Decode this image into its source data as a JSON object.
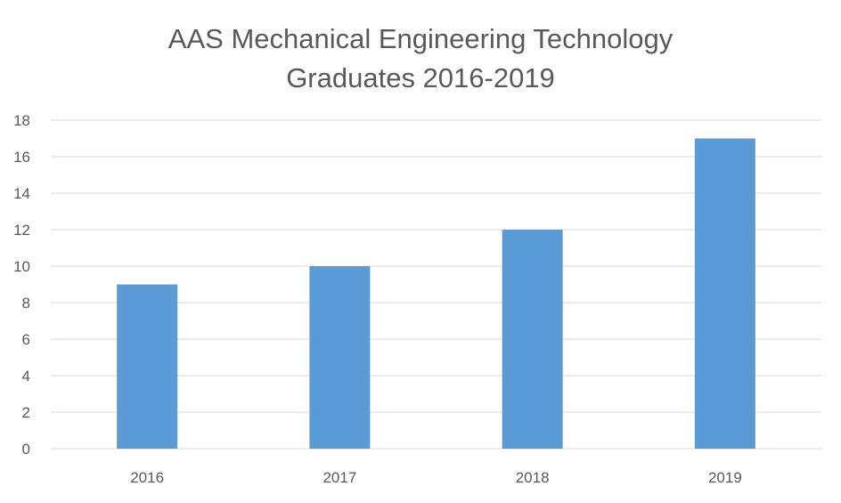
{
  "chart_data": {
    "type": "bar",
    "title_lines": [
      "AAS Mechanical Engineering Technology",
      "Graduates 2016-2019"
    ],
    "categories": [
      "2016",
      "2017",
      "2018",
      "2019"
    ],
    "series": [
      {
        "values": [
          9,
          10,
          12,
          17
        ]
      }
    ],
    "xlabel": "",
    "ylabel": "",
    "ylim": [
      0,
      18
    ],
    "yticks": [
      0,
      2,
      4,
      6,
      8,
      10,
      12,
      14,
      16,
      18
    ],
    "grid": true,
    "legend": "none",
    "bar_color": "#5B9BD5",
    "grid_color": "#D9D9D9",
    "text_color": "#595959"
  }
}
